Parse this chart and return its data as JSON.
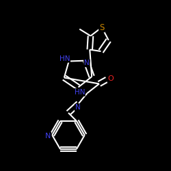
{
  "background_color": "#000000",
  "bond_color": "#ffffff",
  "atom_colors": {
    "N": "#4040ee",
    "O": "#ee2222",
    "S": "#cc8800",
    "C": "#ffffff"
  },
  "lw": 1.5,
  "fs": 7.5
}
